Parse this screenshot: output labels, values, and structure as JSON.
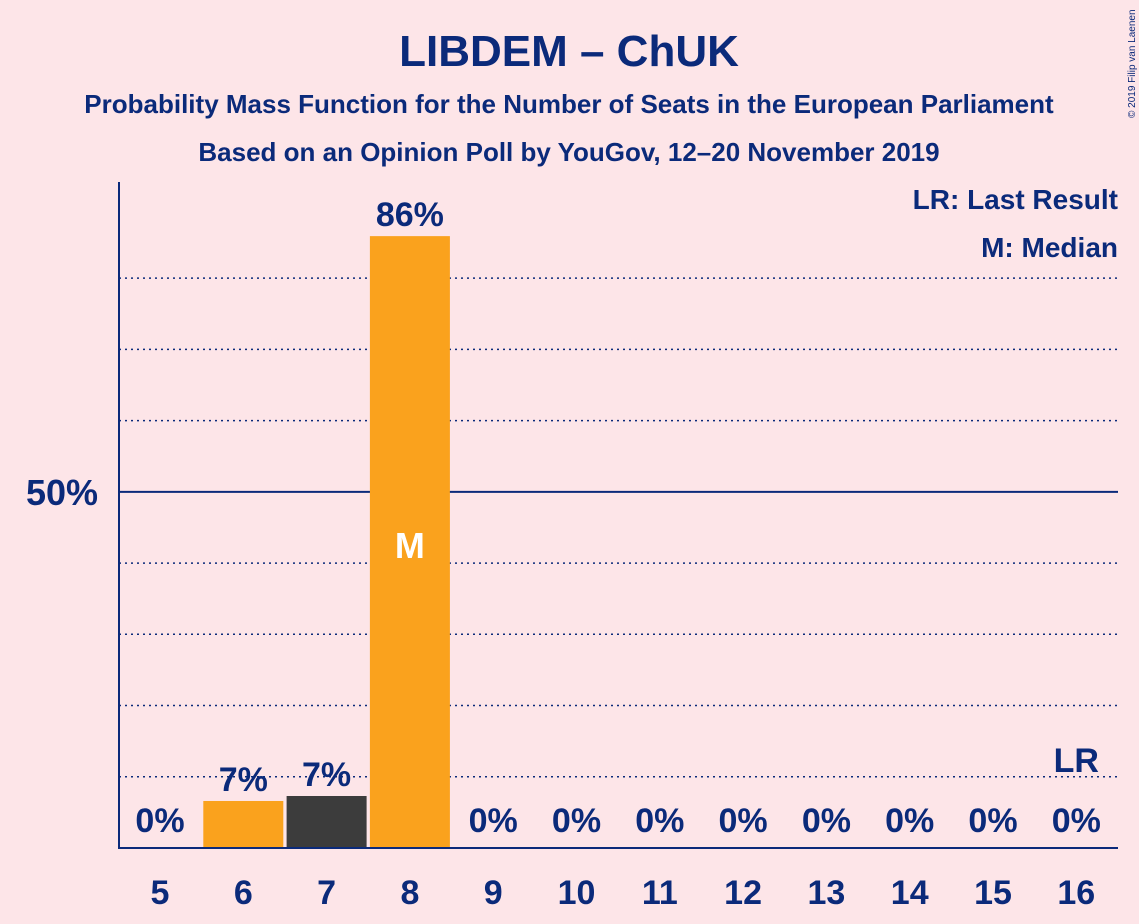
{
  "chart_data": {
    "type": "bar",
    "title": "LIBDEM – ChUK",
    "subtitle": "Probability Mass Function for the Number of Seats in the European Parliament",
    "subtitle2": "Based on an Opinion Poll by YouGov, 12–20 November 2019",
    "copyright": "© 2019 Filip van Laenen",
    "legend": [
      "LR: Last Result",
      "M: Median"
    ],
    "legend_position": "top-right",
    "categories": [
      "5",
      "6",
      "7",
      "8",
      "9",
      "10",
      "11",
      "12",
      "13",
      "14",
      "15",
      "16"
    ],
    "values": [
      0,
      6.6,
      7.3,
      85.9,
      0,
      0,
      0,
      0,
      0,
      0,
      0,
      0
    ],
    "value_labels": [
      "0%",
      "7%",
      "7%",
      "86%",
      "0%",
      "0%",
      "0%",
      "0%",
      "0%",
      "0%",
      "0%",
      "0%"
    ],
    "colors": [
      "#faa21d",
      "#faa21d",
      "#3c3c3c",
      "#faa21d",
      "#faa21d",
      "#faa21d",
      "#faa21d",
      "#faa21d",
      "#faa21d",
      "#faa21d",
      "#faa21d",
      "#faa21d"
    ],
    "ylim": [
      0,
      93.5
    ],
    "yticks": [
      {
        "value": 50,
        "label": "50%"
      }
    ],
    "gridlines": [
      10,
      20,
      30,
      40,
      60,
      70,
      80
    ],
    "median_marker": {
      "category": "8",
      "label": "M"
    },
    "last_result_marker": {
      "category": "16",
      "label": "LR"
    },
    "xlabel": "",
    "ylabel": ""
  }
}
